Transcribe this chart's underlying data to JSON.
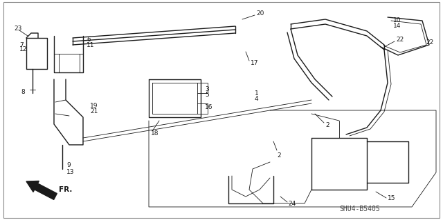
{
  "bg_color": "#ffffff",
  "line_color": "#1a1a1a",
  "fig_width": 6.4,
  "fig_height": 3.19,
  "dpi": 100,
  "diagram_code": "SHU4-B5405",
  "border": [
    0.008,
    0.008,
    0.992,
    0.992
  ]
}
